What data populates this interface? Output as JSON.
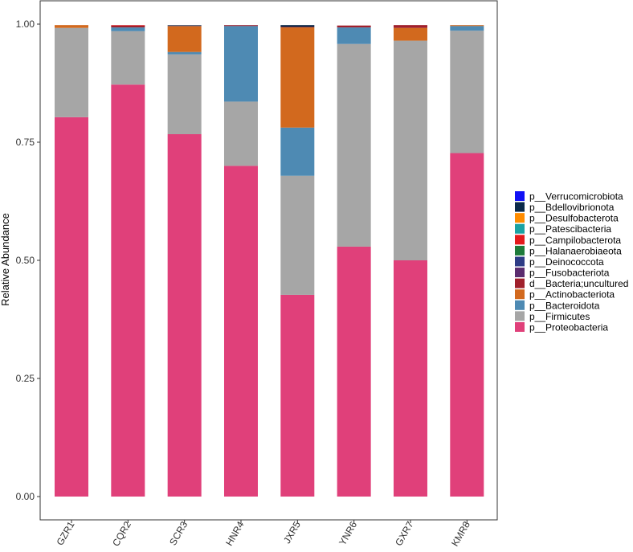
{
  "chart_data": {
    "type": "bar",
    "stacked": true,
    "title": "",
    "xlabel": "",
    "ylabel": "Relative Abundance",
    "ylim": [
      0,
      1
    ],
    "yticks": [
      0.0,
      0.25,
      0.5,
      0.75,
      1.0
    ],
    "ytick_labels": [
      "0.00",
      "0.25",
      "0.50",
      "0.75",
      "1.00"
    ],
    "grid": false,
    "legend_position": "right",
    "categories": [
      "GZR1",
      "CQR2",
      "SCR3",
      "HNR4",
      "JXR5",
      "YNR6",
      "GXR7",
      "KMR8"
    ],
    "series": [
      {
        "name": "p__Proteobacteria",
        "color": "#E0407A",
        "values": [
          0.803,
          0.872,
          0.767,
          0.7,
          0.427,
          0.529,
          0.5,
          0.727
        ]
      },
      {
        "name": "p__Firmicutes",
        "color": "#A6A6A6",
        "values": [
          0.189,
          0.113,
          0.169,
          0.136,
          0.252,
          0.429,
          0.465,
          0.259
        ]
      },
      {
        "name": "p__Bacteroidota",
        "color": "#4E8AB3",
        "values": [
          0.0,
          0.008,
          0.005,
          0.16,
          0.102,
          0.035,
          0.0,
          0.01
        ]
      },
      {
        "name": "p__Actinobacteriota",
        "color": "#D2691E",
        "values": [
          0.006,
          0.0,
          0.055,
          0.0,
          0.212,
          0.0,
          0.027,
          0.002
        ]
      },
      {
        "name": "d__Bacteria;uncultured",
        "color": "#A0202C",
        "values": [
          0.0,
          0.004,
          0.0,
          0.002,
          0.001,
          0.004,
          0.006,
          0.0
        ]
      },
      {
        "name": "p__Fusobacteriota",
        "color": "#5B2C6F",
        "values": [
          0.0,
          0.0,
          0.0,
          0.0,
          0.0,
          0.0,
          0.0,
          0.0
        ]
      },
      {
        "name": "p__Deinococcota",
        "color": "#2E3C86",
        "values": [
          0.0,
          0.0,
          0.001,
          0.0,
          0.0,
          0.0,
          0.0,
          0.0
        ]
      },
      {
        "name": "p__Halanaerobiaeota",
        "color": "#1E7B3A",
        "values": [
          0.0,
          0.0,
          0.0,
          0.0,
          0.0,
          0.0,
          0.0,
          0.0
        ]
      },
      {
        "name": "p__Campilobacterota",
        "color": "#E41A1C",
        "values": [
          0.0,
          0.001,
          0.0,
          0.0,
          0.0,
          0.0,
          0.0,
          0.0
        ]
      },
      {
        "name": "p__Patescibacteria",
        "color": "#1BA3A3",
        "values": [
          0.0,
          0.0,
          0.0,
          0.0,
          0.0,
          0.0,
          0.0,
          0.0
        ]
      },
      {
        "name": "p__Desulfobacterota",
        "color": "#FF8C00",
        "values": [
          0.0,
          0.0,
          0.0,
          0.0,
          0.0,
          0.0,
          0.0,
          0.0
        ]
      },
      {
        "name": "p__Bdellovibrionota",
        "color": "#0B2A4A",
        "values": [
          0.0,
          0.0,
          0.001,
          0.0,
          0.004,
          0.0,
          0.0,
          0.0
        ]
      },
      {
        "name": "p__Verrucomicrobiota",
        "color": "#1010F5",
        "values": [
          0.0,
          0.0,
          0.0,
          0.0,
          0.0,
          0.0,
          0.0,
          0.0
        ]
      }
    ],
    "legend_order": [
      "p__Verrucomicrobiota",
      "p__Bdellovibrionota",
      "p__Desulfobacterota",
      "p__Patescibacteria",
      "p__Campilobacterota",
      "p__Halanaerobiaeota",
      "p__Deinococcota",
      "p__Fusobacteriota",
      "d__Bacteria;uncultured",
      "p__Actinobacteriota",
      "p__Bacteroidota",
      "p__Firmicutes",
      "p__Proteobacteria"
    ]
  }
}
